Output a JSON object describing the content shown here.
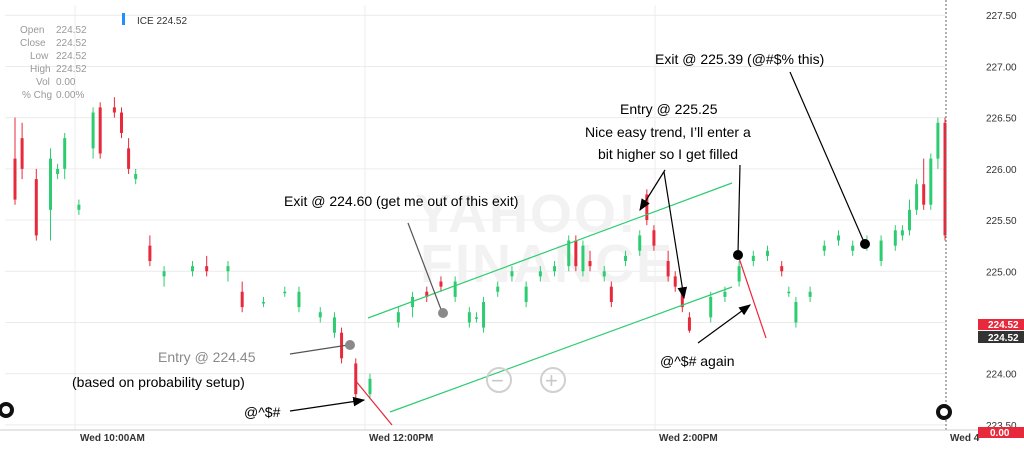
{
  "ohlc_panel": {
    "rows": [
      {
        "label": "Open",
        "value": "224.52"
      },
      {
        "label": "Close",
        "value": "224.52"
      },
      {
        "label": "Low",
        "value": "224.52"
      },
      {
        "label": "High",
        "value": "224.52"
      },
      {
        "label": "Vol",
        "value": "0.00"
      },
      {
        "label": "% Chg",
        "value": "0.00%"
      }
    ]
  },
  "legend": {
    "label": "ICE 224.52",
    "color": "#1e90ff"
  },
  "watermark": {
    "line1": "YAHOO!",
    "line2": "FINANCE"
  },
  "price_tags": {
    "last": "224.52",
    "close": "224.52",
    "vol_tag": "0.00"
  },
  "zoom": {
    "out_label": "−",
    "in_label": "+"
  },
  "annotations": {
    "exit1": "Exit @ 224.60 (get me out of this exit)",
    "exit2": "Exit @ 225.39 (@#$% this)",
    "entry2_line1": "Entry @ 225.25",
    "entry2_line2": "Nice easy trend, I’ll enter a",
    "entry2_line3": "bit higher so I get filled",
    "entry1": "Entry @ 224.45",
    "entry1_sub": "(based on probability setup)",
    "curse1": "@^$#",
    "curse2": "@^$# again"
  },
  "chart_data": {
    "type": "candlestick",
    "y_ticks": [
      "227.50",
      "227.00",
      "226.50",
      "226.00",
      "225.50",
      "225.00",
      "224.50",
      "224.00",
      "223.50"
    ],
    "ylim": [
      223.45,
      227.6
    ],
    "x_ticks": [
      "Wed 10:00AM",
      "Wed 12:00PM",
      "Wed 2:00PM",
      "Wed 4"
    ],
    "grid": true,
    "up_color": "#2ecc71",
    "down_color": "#e8293b",
    "candles": [
      {
        "t": 0,
        "o": 226.1,
        "h": 226.5,
        "l": 225.65,
        "c": 225.7
      },
      {
        "t": 1,
        "o": 226.3,
        "h": 226.45,
        "l": 225.9,
        "c": 226.0
      },
      {
        "t": 3,
        "o": 225.9,
        "h": 226.0,
        "l": 225.3,
        "c": 225.35
      },
      {
        "t": 5,
        "o": 225.6,
        "h": 226.2,
        "l": 225.3,
        "c": 226.1
      },
      {
        "t": 6,
        "o": 225.95,
        "h": 226.05,
        "l": 225.9,
        "c": 226.0
      },
      {
        "t": 7,
        "o": 226.0,
        "h": 226.35,
        "l": 225.9,
        "c": 226.3
      },
      {
        "t": 9,
        "o": 225.6,
        "h": 225.7,
        "l": 225.55,
        "c": 225.65
      },
      {
        "t": 11,
        "o": 226.2,
        "h": 226.6,
        "l": 226.1,
        "c": 226.55
      },
      {
        "t": 12,
        "o": 226.6,
        "h": 226.65,
        "l": 226.1,
        "c": 226.15
      },
      {
        "t": 14,
        "o": 226.6,
        "h": 226.7,
        "l": 226.5,
        "c": 226.55
      },
      {
        "t": 15,
        "o": 226.55,
        "h": 226.6,
        "l": 226.3,
        "c": 226.35
      },
      {
        "t": 16,
        "o": 226.2,
        "h": 226.3,
        "l": 225.95,
        "c": 226.0
      },
      {
        "t": 17,
        "o": 225.9,
        "h": 226.0,
        "l": 225.85,
        "c": 225.95
      },
      {
        "t": 19,
        "o": 225.25,
        "h": 225.35,
        "l": 225.05,
        "c": 225.1
      },
      {
        "t": 21,
        "o": 224.95,
        "h": 225.05,
        "l": 224.85,
        "c": 225.0
      },
      {
        "t": 25,
        "o": 225.0,
        "h": 225.1,
        "l": 224.95,
        "c": 225.05
      },
      {
        "t": 27,
        "o": 225.05,
        "h": 225.15,
        "l": 224.95,
        "c": 225.0
      },
      {
        "t": 30,
        "o": 225.0,
        "h": 225.1,
        "l": 224.9,
        "c": 225.05
      },
      {
        "t": 32,
        "o": 224.8,
        "h": 224.9,
        "l": 224.6,
        "c": 224.65
      },
      {
        "t": 35,
        "o": 224.7,
        "h": 224.75,
        "l": 224.65,
        "c": 224.7
      },
      {
        "t": 38,
        "o": 224.8,
        "h": 224.85,
        "l": 224.75,
        "c": 224.8
      },
      {
        "t": 40,
        "o": 224.65,
        "h": 224.85,
        "l": 224.6,
        "c": 224.8
      },
      {
        "t": 43,
        "o": 224.55,
        "h": 224.65,
        "l": 224.5,
        "c": 224.6
      },
      {
        "t": 45,
        "o": 224.4,
        "h": 224.6,
        "l": 224.35,
        "c": 224.55
      },
      {
        "t": 46,
        "o": 224.4,
        "h": 224.45,
        "l": 224.1,
        "c": 224.15
      },
      {
        "t": 48,
        "o": 224.1,
        "h": 224.15,
        "l": 223.75,
        "c": 223.8
      },
      {
        "t": 50,
        "o": 223.8,
        "h": 224.0,
        "l": 223.75,
        "c": 223.95
      },
      {
        "t": 54,
        "o": 224.5,
        "h": 224.65,
        "l": 224.45,
        "c": 224.6
      },
      {
        "t": 56,
        "o": 224.65,
        "h": 224.8,
        "l": 224.55,
        "c": 224.75
      },
      {
        "t": 58,
        "o": 224.8,
        "h": 224.85,
        "l": 224.7,
        "c": 224.75
      },
      {
        "t": 60,
        "o": 224.9,
        "h": 224.95,
        "l": 224.8,
        "c": 224.85
      },
      {
        "t": 62,
        "o": 224.75,
        "h": 224.95,
        "l": 224.7,
        "c": 224.9
      },
      {
        "t": 64,
        "o": 224.5,
        "h": 224.65,
        "l": 224.45,
        "c": 224.6
      },
      {
        "t": 65,
        "o": 224.55,
        "h": 224.6,
        "l": 224.5,
        "c": 224.55
      },
      {
        "t": 66,
        "o": 224.45,
        "h": 224.75,
        "l": 224.4,
        "c": 224.7
      },
      {
        "t": 68,
        "o": 224.8,
        "h": 224.9,
        "l": 224.75,
        "c": 224.85
      },
      {
        "t": 70,
        "o": 224.95,
        "h": 225.05,
        "l": 224.9,
        "c": 225.0
      },
      {
        "t": 72,
        "o": 224.7,
        "h": 224.9,
        "l": 224.65,
        "c": 224.85
      },
      {
        "t": 74,
        "o": 224.95,
        "h": 225.05,
        "l": 224.9,
        "c": 225.0
      },
      {
        "t": 76,
        "o": 225.0,
        "h": 225.1,
        "l": 224.95,
        "c": 225.05
      },
      {
        "t": 78,
        "o": 225.05,
        "h": 225.35,
        "l": 225.0,
        "c": 225.3
      },
      {
        "t": 79,
        "o": 225.3,
        "h": 225.35,
        "l": 225.0,
        "c": 225.05
      },
      {
        "t": 80,
        "o": 225.0,
        "h": 225.3,
        "l": 224.95,
        "c": 225.25
      },
      {
        "t": 81,
        "o": 225.1,
        "h": 225.2,
        "l": 225.0,
        "c": 225.05
      },
      {
        "t": 83,
        "o": 224.95,
        "h": 225.05,
        "l": 224.9,
        "c": 225.0
      },
      {
        "t": 84,
        "o": 224.85,
        "h": 224.9,
        "l": 224.65,
        "c": 224.7
      },
      {
        "t": 86,
        "o": 225.1,
        "h": 225.2,
        "l": 225.05,
        "c": 225.15
      },
      {
        "t": 88,
        "o": 225.2,
        "h": 225.4,
        "l": 225.15,
        "c": 225.35
      },
      {
        "t": 89,
        "o": 225.75,
        "h": 225.8,
        "l": 225.45,
        "c": 225.5
      },
      {
        "t": 90,
        "o": 225.4,
        "h": 225.45,
        "l": 225.2,
        "c": 225.25
      },
      {
        "t": 92,
        "o": 225.1,
        "h": 225.2,
        "l": 224.9,
        "c": 224.95
      },
      {
        "t": 93,
        "o": 224.95,
        "h": 225.0,
        "l": 224.8,
        "c": 224.85
      },
      {
        "t": 94,
        "o": 224.8,
        "h": 224.85,
        "l": 224.6,
        "c": 224.65
      },
      {
        "t": 95,
        "o": 224.55,
        "h": 224.6,
        "l": 224.4,
        "c": 224.42
      },
      {
        "t": 98,
        "o": 224.55,
        "h": 224.8,
        "l": 224.5,
        "c": 224.75
      },
      {
        "t": 100,
        "o": 224.75,
        "h": 224.85,
        "l": 224.7,
        "c": 224.8
      },
      {
        "t": 102,
        "o": 224.9,
        "h": 225.1,
        "l": 224.85,
        "c": 225.05
      },
      {
        "t": 104,
        "o": 225.1,
        "h": 225.2,
        "l": 225.05,
        "c": 225.15
      },
      {
        "t": 106,
        "o": 225.15,
        "h": 225.25,
        "l": 225.1,
        "c": 225.2
      },
      {
        "t": 108,
        "o": 225.05,
        "h": 225.1,
        "l": 224.95,
        "c": 225.0
      },
      {
        "t": 109,
        "o": 224.8,
        "h": 224.85,
        "l": 224.75,
        "c": 224.8
      },
      {
        "t": 110,
        "o": 224.5,
        "h": 224.75,
        "l": 224.45,
        "c": 224.7
      },
      {
        "t": 112,
        "o": 224.75,
        "h": 224.85,
        "l": 224.7,
        "c": 224.8
      },
      {
        "t": 114,
        "o": 225.2,
        "h": 225.3,
        "l": 225.15,
        "c": 225.25
      },
      {
        "t": 116,
        "o": 225.3,
        "h": 225.4,
        "l": 225.25,
        "c": 225.35
      },
      {
        "t": 118,
        "o": 225.2,
        "h": 225.3,
        "l": 225.15,
        "c": 225.25
      },
      {
        "t": 120,
        "o": 225.25,
        "h": 225.35,
        "l": 225.2,
        "c": 225.3
      },
      {
        "t": 122,
        "o": 225.1,
        "h": 225.35,
        "l": 225.05,
        "c": 225.3
      },
      {
        "t": 124,
        "o": 225.25,
        "h": 225.45,
        "l": 225.2,
        "c": 225.4
      },
      {
        "t": 125,
        "o": 225.35,
        "h": 225.45,
        "l": 225.3,
        "c": 225.4
      },
      {
        "t": 126,
        "o": 225.4,
        "h": 225.7,
        "l": 225.35,
        "c": 225.6
      },
      {
        "t": 127,
        "o": 225.6,
        "h": 225.9,
        "l": 225.55,
        "c": 225.85
      },
      {
        "t": 128,
        "o": 225.85,
        "h": 226.1,
        "l": 225.6,
        "c": 225.65
      },
      {
        "t": 129,
        "o": 225.65,
        "h": 226.15,
        "l": 225.6,
        "c": 226.1
      },
      {
        "t": 130,
        "o": 226.1,
        "h": 226.5,
        "l": 226.0,
        "c": 226.45
      },
      {
        "t": 131,
        "o": 226.45,
        "h": 226.5,
        "l": 225.3,
        "c": 225.35
      }
    ]
  }
}
